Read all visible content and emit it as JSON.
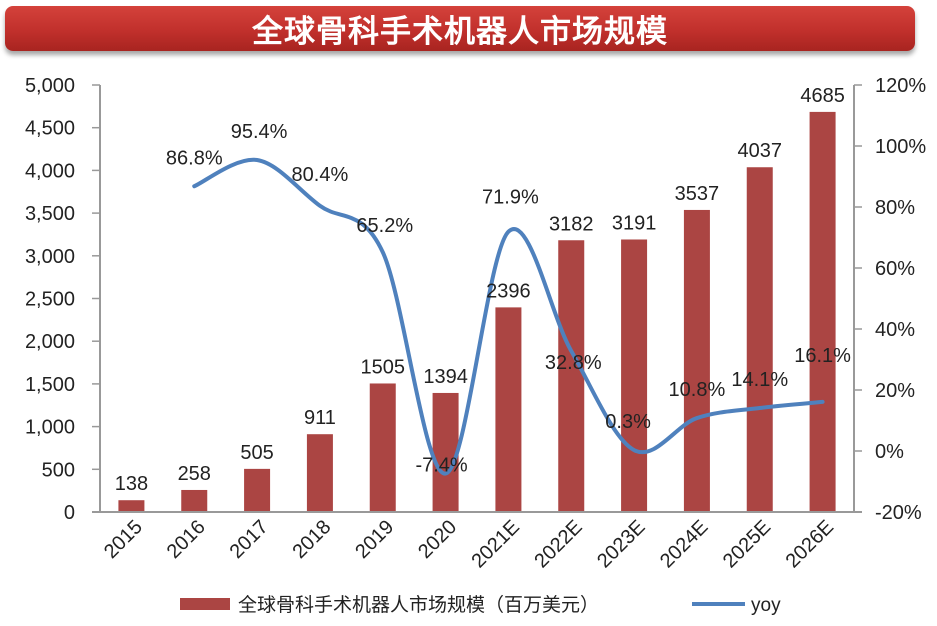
{
  "header": {
    "title": "全球骨科手术机器人市场规模"
  },
  "legend": {
    "bar_label": "全球骨科手术机器人市场规模（百万美元）",
    "line_label": "yoy"
  },
  "colors": {
    "bar": "#ab4543",
    "line": "#4f81bd",
    "title_bg": "#c1302c",
    "axis": "#999999"
  },
  "chart_data": {
    "type": "bar+line",
    "title": "全球骨科手术机器人市场规模",
    "categories": [
      "2015",
      "2016",
      "2017",
      "2018",
      "2019",
      "2020",
      "2021E",
      "2022E",
      "2023E",
      "2024E",
      "2025E",
      "2026E"
    ],
    "series": [
      {
        "name": "全球骨科手术机器人市场规模（百万美元）",
        "type": "bar",
        "axis": "left",
        "values": [
          138,
          258,
          505,
          911,
          1505,
          1394,
          2396,
          3182,
          3191,
          3537,
          4037,
          4685
        ],
        "labels": [
          "138",
          "258",
          "505",
          "911",
          "1505",
          "1394",
          "2396",
          "3182",
          "3191",
          "3537",
          "4037",
          "4685"
        ]
      },
      {
        "name": "yoy",
        "type": "line",
        "axis": "right",
        "values": [
          null,
          86.8,
          95.4,
          80.4,
          65.2,
          -7.4,
          71.9,
          32.8,
          0.3,
          10.8,
          14.1,
          16.1
        ],
        "labels": [
          "",
          "86.8%",
          "95.4%",
          "80.4%",
          "65.2%",
          "-7.4%",
          "71.9%",
          "32.8%",
          "0.3%",
          "10.8%",
          "14.1%",
          "16.1%"
        ]
      }
    ],
    "left_axis": {
      "ylim": [
        0,
        5000
      ],
      "ticks": [
        "0",
        "500",
        "1,000",
        "1,500",
        "2,000",
        "2,500",
        "3,000",
        "3,500",
        "4,000",
        "4,500",
        "5,000"
      ]
    },
    "right_axis": {
      "ylim": [
        -20,
        120
      ],
      "ticks": [
        "-20%",
        "0%",
        "20%",
        "40%",
        "60%",
        "80%",
        "100%",
        "120%"
      ]
    },
    "xlabel": "",
    "ylabel": "",
    "grid": false,
    "legend_position": "bottom"
  }
}
